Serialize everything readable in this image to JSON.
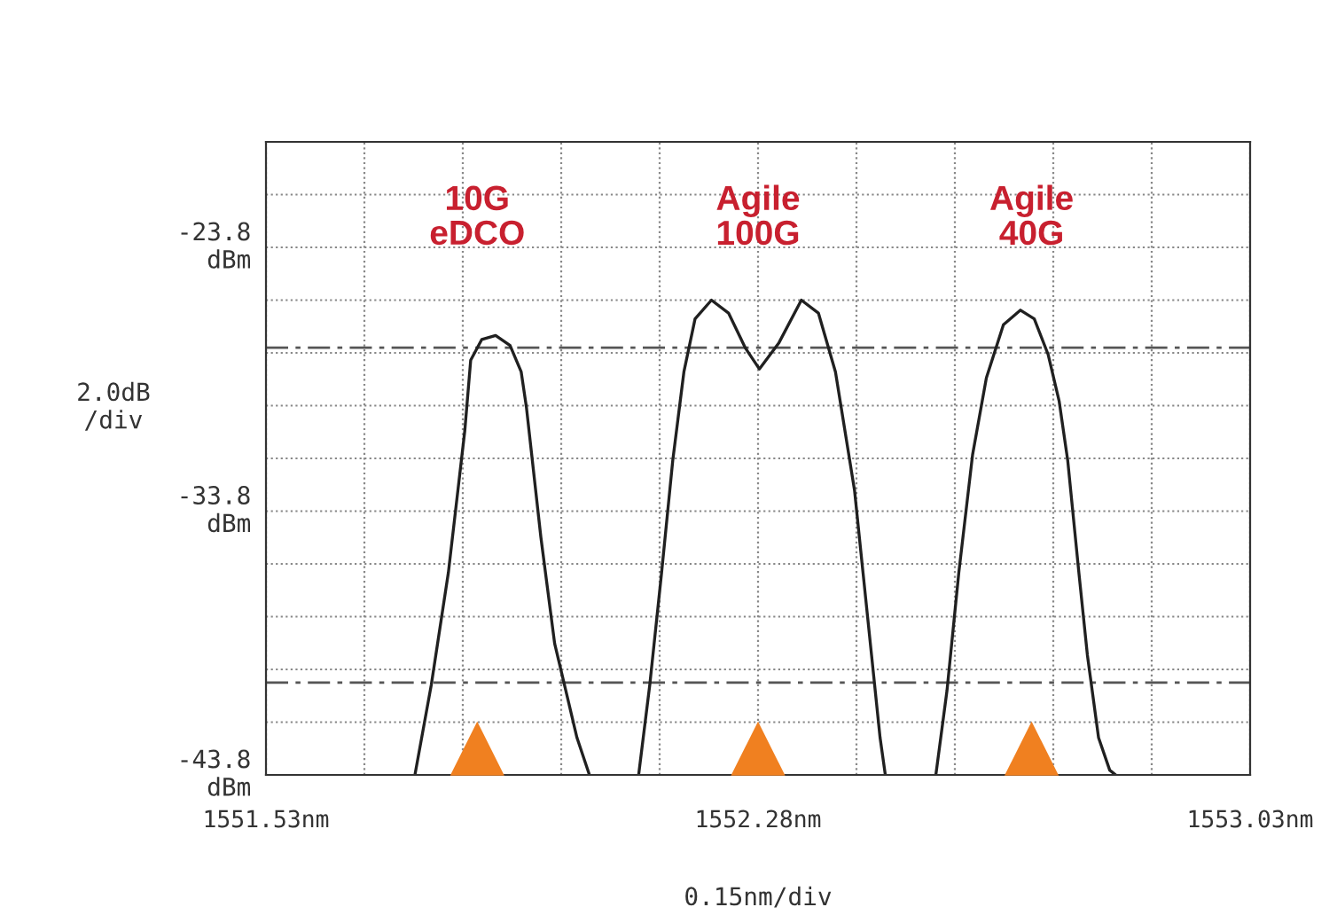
{
  "chart_data": {
    "type": "line",
    "xlabel": "0.15nm/div",
    "ylabel": "2.0dB\n/div",
    "xlim": [
      1551.53,
      1553.03
    ],
    "xticks": [
      {
        "value": 1551.53,
        "label": "1551.53nm"
      },
      {
        "value": 1551.68,
        "label": null
      },
      {
        "value": 1551.83,
        "label": null
      },
      {
        "value": 1551.98,
        "label": null
      },
      {
        "value": 1552.13,
        "label": null
      },
      {
        "value": 1552.28,
        "label": "1552.28nm"
      },
      {
        "value": 1552.43,
        "label": null
      },
      {
        "value": 1552.58,
        "label": null
      },
      {
        "value": 1552.73,
        "label": null
      },
      {
        "value": 1552.88,
        "label": null
      },
      {
        "value": 1553.03,
        "label": "1553.03nm"
      }
    ],
    "ylim": [
      -43.8,
      -19.8
    ],
    "yticks": [
      {
        "value": -43.8,
        "label": "-43.8\ndBm"
      },
      {
        "value": -41.8,
        "label": null
      },
      {
        "value": -39.8,
        "label": null
      },
      {
        "value": -37.8,
        "label": null
      },
      {
        "value": -35.8,
        "label": null
      },
      {
        "value": -33.8,
        "label": "-33.8\ndBm"
      },
      {
        "value": -31.8,
        "label": null
      },
      {
        "value": -29.8,
        "label": null
      },
      {
        "value": -27.8,
        "label": null
      },
      {
        "value": -25.8,
        "label": null
      },
      {
        "value": -23.8,
        "label": "-23.8\ndBm"
      },
      {
        "value": -21.8,
        "label": null
      },
      {
        "value": -19.8,
        "label": null
      }
    ],
    "grid": true,
    "line_style": "solid",
    "series": [
      {
        "color": "#202020",
        "marker": "none",
        "x": [
          1551.757,
          1551.782,
          1551.808,
          1551.833,
          1551.842,
          1551.859,
          1551.88,
          1551.902,
          1551.919,
          1551.927,
          1551.949,
          1551.97,
          1551.987,
          1552.004,
          1552.023,
          1552.06,
          1552.098,
          1552.115,
          1552.133,
          1552.15,
          1552.167,
          1552.184,
          1552.209,
          1552.235,
          1552.261,
          1552.282,
          1552.312,
          1552.346,
          1552.372,
          1552.398,
          1552.427,
          1552.44,
          1552.453,
          1552.466,
          1552.474,
          1552.51,
          1552.551,
          1552.568,
          1552.586,
          1552.607,
          1552.628,
          1552.654,
          1552.68,
          1552.701,
          1552.722,
          1552.739,
          1552.752,
          1552.769,
          1552.782,
          1552.799,
          1552.816,
          1552.825
        ],
        "values": [
          -43.8,
          -40.38,
          -36.13,
          -30.76,
          -28.08,
          -27.29,
          -27.14,
          -27.52,
          -28.52,
          -29.87,
          -34.79,
          -38.82,
          -40.6,
          -42.39,
          -43.8,
          null,
          -43.8,
          -40.38,
          -36.13,
          -31.88,
          -28.52,
          -26.51,
          -25.8,
          -26.29,
          -27.63,
          -28.41,
          -27.41,
          -25.8,
          -26.29,
          -28.52,
          -33.0,
          -36.13,
          -39.26,
          -42.39,
          -43.8,
          null,
          -43.8,
          -40.6,
          -36.13,
          -31.66,
          -28.75,
          -26.73,
          -26.18,
          -26.51,
          -27.85,
          -29.64,
          -31.88,
          -36.13,
          -39.26,
          -42.39,
          -43.62,
          -43.8
        ]
      },
      {
        "type": "scatter",
        "color": "#f08020",
        "marker": "triangle",
        "x": [
          1551.852,
          1552.28,
          1552.697
        ],
        "values": [
          -42.8,
          -42.8,
          -42.8
        ]
      }
    ],
    "ref_lines": [
      {
        "axis": "y",
        "value": -27.6,
        "color": "#555555",
        "line_style": "dashed"
      },
      {
        "axis": "y",
        "value": -40.3,
        "color": "#555555",
        "line_style": "dashed"
      }
    ],
    "annotations": [
      "10G\neDCO",
      "Agile\n100G",
      "Agile\n40G"
    ]
  }
}
